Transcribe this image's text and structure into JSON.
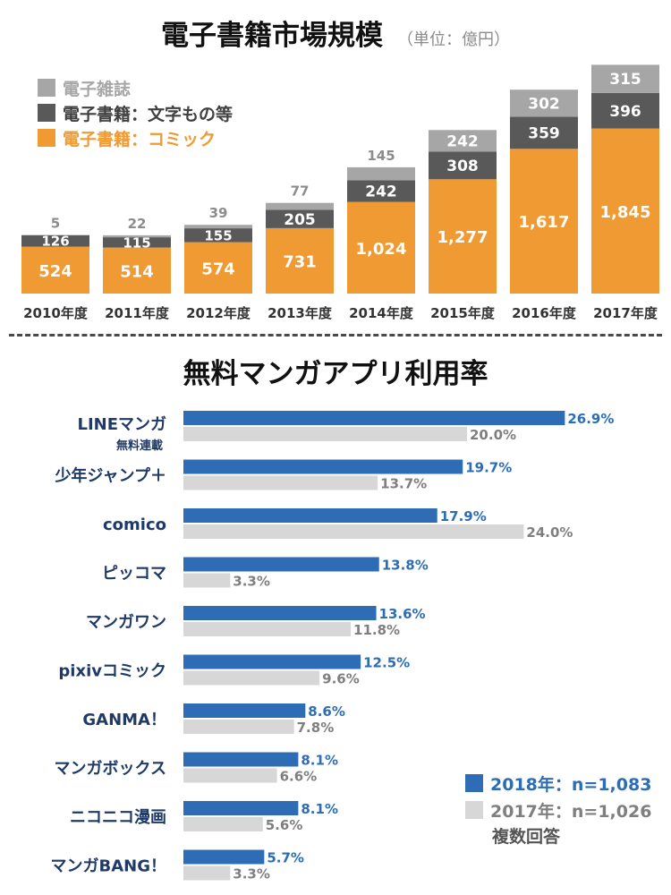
{
  "header": {
    "title": "電子書籍市場規模",
    "unit": "（単位：億円）"
  },
  "colors": {
    "magazine": "#a6a6a6",
    "text": "#595959",
    "comic": "#ef9a32",
    "y2018": "#2e6db5",
    "y2017": "#d7d7d7",
    "y2018_label": "#2e6db5",
    "y2017_label": "#7f7f7f",
    "app_label": "#1f3a66"
  },
  "section2": {
    "title": "無料マンガアプリ利用率"
  },
  "legend2": {
    "y2018": "2018年：n=1,083",
    "y2017": "2017年：n=1,026",
    "note": "複数回答"
  },
  "chart_data": [
    {
      "type": "bar",
      "stacked": true,
      "title": "電子書籍市場規模",
      "subtitle": "（単位：億円）",
      "categories": [
        "2010年度",
        "2011年度",
        "2012年度",
        "2013年度",
        "2014年度",
        "2015年度",
        "2016年度",
        "2017年度"
      ],
      "series": [
        {
          "name": "電子書籍：コミック",
          "values": [
            524,
            514,
            574,
            731,
            1024,
            1277,
            1617,
            1845
          ],
          "labels": [
            "524",
            "514",
            "574",
            "731",
            "1,024",
            "1,277",
            "1,617",
            "1,845"
          ]
        },
        {
          "name": "電子書籍：文字もの等",
          "values": [
            126,
            115,
            155,
            205,
            242,
            308,
            359,
            396
          ],
          "labels": [
            "126",
            "115",
            "155",
            "205",
            "242",
            "308",
            "359",
            "396"
          ]
        },
        {
          "name": "電子雑誌",
          "values": [
            5,
            22,
            39,
            77,
            145,
            242,
            302,
            315
          ],
          "labels": [
            "5",
            "22",
            "39",
            "77",
            "145",
            "242",
            "302",
            "315"
          ]
        }
      ],
      "legend": "top-left",
      "grid": false
    },
    {
      "type": "bar",
      "orientation": "horizontal",
      "title": "無料マンガアプリ利用率",
      "categories": [
        "LINEマンガ",
        "少年ジャンプ＋",
        "comico",
        "ピッコマ",
        "マンガワン",
        "pixivコミック",
        "GANMA！",
        "マンガボックス",
        "ニコニコ漫画",
        "マンガBANG！"
      ],
      "category_notes": [
        "無料連載",
        "",
        "",
        "",
        "",
        "",
        "",
        "",
        "",
        ""
      ],
      "series": [
        {
          "name": "2018年：n=1,083",
          "values": [
            26.9,
            19.7,
            17.9,
            13.8,
            13.6,
            12.5,
            8.6,
            8.1,
            8.1,
            5.7
          ],
          "labels": [
            "26.9%",
            "19.7%",
            "17.9%",
            "13.8%",
            "13.6%",
            "12.5%",
            "8.6%",
            "8.1%",
            "8.1%",
            "5.7%"
          ]
        },
        {
          "name": "2017年：n=1,026",
          "values": [
            20.0,
            13.7,
            24.0,
            3.3,
            11.8,
            9.6,
            7.8,
            6.6,
            5.6,
            3.3
          ],
          "labels": [
            "20.0%",
            "13.7%",
            "24.0%",
            "3.3%",
            "11.8%",
            "9.6%",
            "7.8%",
            "6.6%",
            "5.6%",
            "3.3%"
          ]
        }
      ],
      "legend": "bottom-right",
      "note": "複数回答",
      "grid": false
    }
  ]
}
